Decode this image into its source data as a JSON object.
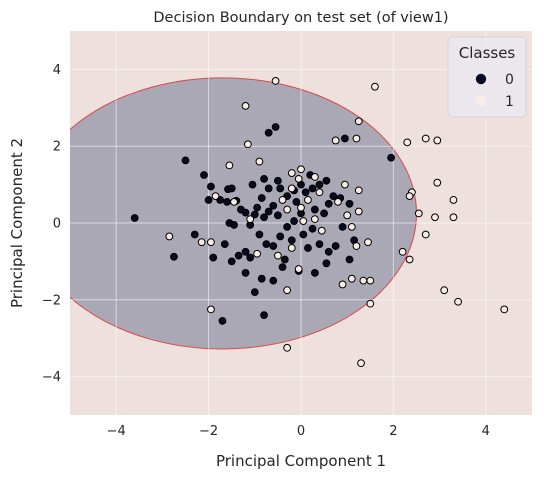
{
  "chart_data": {
    "type": "scatter",
    "title": "Decision Boundary on test set (of view1)",
    "xlabel": "Principal Component 1",
    "ylabel": "Principal Component 2",
    "xlim": [
      -5,
      5
    ],
    "ylim": [
      -5,
      5
    ],
    "xticks": [
      -4,
      -2,
      0,
      2,
      4
    ],
    "yticks": [
      -4,
      -2,
      0,
      2,
      4
    ],
    "grid": true,
    "legend": {
      "title": "Classes",
      "placement": "top-right",
      "entries": [
        "0",
        "1"
      ]
    },
    "decision_region": {
      "shape": "ellipse",
      "inside_class": "0",
      "center": [
        -1.7,
        0.25
      ],
      "radii": [
        4.2,
        3.53
      ],
      "inside_color": "#aba8b6",
      "outside_color": "#ede0dd",
      "edge_color": "#d84a48"
    },
    "series": [
      {
        "name": "0",
        "color": "#0a0a1e",
        "points": [
          [
            -3.6,
            0.13
          ],
          [
            -2.5,
            1.63
          ],
          [
            -2.1,
            1.25
          ],
          [
            -1.95,
            0.95
          ],
          [
            -1.58,
            0.88
          ],
          [
            -1.5,
            0.9
          ],
          [
            -1.6,
            0.55
          ],
          [
            -1.4,
            0.58
          ],
          [
            -1.75,
            0.6
          ],
          [
            -2.0,
            0.6
          ],
          [
            -2.3,
            -0.3
          ],
          [
            -2.75,
            -0.88
          ],
          [
            -1.9,
            -0.9
          ],
          [
            -1.65,
            -0.55
          ],
          [
            -1.45,
            -0.05
          ],
          [
            -1.55,
            0.0
          ],
          [
            -1.3,
            0.35
          ],
          [
            -1.2,
            0.27
          ],
          [
            -1.1,
            -0.05
          ],
          [
            -1.0,
            0.22
          ],
          [
            -0.95,
            0.4
          ],
          [
            -0.85,
            0.65
          ],
          [
            -0.7,
            0.9
          ],
          [
            -1.05,
            1.0
          ],
          [
            -0.8,
            1.15
          ],
          [
            -0.5,
            1.1
          ],
          [
            -0.45,
            0.9
          ],
          [
            -0.3,
            0.7
          ],
          [
            -0.15,
            0.85
          ],
          [
            0.0,
            1.0
          ],
          [
            0.2,
            1.25
          ],
          [
            0.25,
            0.9
          ],
          [
            0.4,
            1.0
          ],
          [
            0.55,
            1.1
          ],
          [
            0.7,
            0.7
          ],
          [
            0.85,
            0.65
          ],
          [
            1.05,
            0.5
          ],
          [
            0.6,
            0.5
          ],
          [
            0.5,
            0.25
          ],
          [
            0.3,
            0.35
          ],
          [
            0.0,
            0.25
          ],
          [
            -0.15,
            0.05
          ],
          [
            -0.3,
            -0.1
          ],
          [
            -0.5,
            0.2
          ],
          [
            -0.6,
            0.45
          ],
          [
            -0.7,
            0.3
          ],
          [
            -0.8,
            0.15
          ],
          [
            -0.9,
            -0.3
          ],
          [
            -0.75,
            -0.55
          ],
          [
            -0.6,
            -0.6
          ],
          [
            -0.45,
            -0.35
          ],
          [
            -0.2,
            -0.45
          ],
          [
            0.05,
            -0.3
          ],
          [
            0.25,
            -0.15
          ],
          [
            0.4,
            -0.55
          ],
          [
            0.6,
            -0.75
          ],
          [
            0.75,
            -0.6
          ],
          [
            0.9,
            -0.1
          ],
          [
            1.15,
            -0.45
          ],
          [
            1.05,
            -0.95
          ],
          [
            0.55,
            -1.05
          ],
          [
            0.3,
            -1.3
          ],
          [
            -0.05,
            -1.25
          ],
          [
            -0.4,
            -1.15
          ],
          [
            -0.6,
            -1.5
          ],
          [
            -0.85,
            -1.45
          ],
          [
            -1.1,
            -0.9
          ],
          [
            -1.2,
            -0.75
          ],
          [
            -1.35,
            -0.85
          ],
          [
            -1.5,
            -1.0
          ],
          [
            -1.0,
            -1.8
          ],
          [
            -1.2,
            -1.3
          ],
          [
            -0.8,
            -2.4
          ],
          [
            -1.7,
            -2.55
          ],
          [
            -0.7,
            2.35
          ],
          [
            -0.55,
            2.5
          ],
          [
            0.95,
            2.2
          ],
          [
            1.95,
            1.7
          ],
          [
            -0.35,
            -0.95
          ],
          [
            0.15,
            -0.65
          ],
          [
            -0.1,
            0.55
          ],
          [
            0.1,
            0.8
          ]
        ]
      },
      {
        "name": "1",
        "color": "#f8ece6",
        "points": [
          [
            -1.2,
            3.05
          ],
          [
            -0.55,
            3.7
          ],
          [
            1.6,
            3.55
          ],
          [
            1.25,
            2.65
          ],
          [
            1.2,
            2.2
          ],
          [
            0.75,
            2.15
          ],
          [
            -1.15,
            2.05
          ],
          [
            -0.9,
            1.6
          ],
          [
            -1.55,
            1.5
          ],
          [
            -0.2,
            1.3
          ],
          [
            0.0,
            1.4
          ],
          [
            0.3,
            1.2
          ],
          [
            -0.05,
            1.15
          ],
          [
            0.4,
            0.8
          ],
          [
            0.95,
            1.0
          ],
          [
            1.25,
            0.85
          ],
          [
            0.8,
            0.55
          ],
          [
            1.0,
            0.2
          ],
          [
            1.25,
            0.3
          ],
          [
            1.1,
            -0.1
          ],
          [
            1.2,
            -0.6
          ],
          [
            1.45,
            -0.5
          ],
          [
            0.3,
            0.1
          ],
          [
            0.05,
            0.05
          ],
          [
            -0.3,
            0.35
          ],
          [
            0.0,
            0.4
          ],
          [
            0.15,
            0.6
          ],
          [
            -0.2,
            -0.65
          ],
          [
            -0.05,
            -1.2
          ],
          [
            -0.5,
            -0.85
          ],
          [
            -0.95,
            -0.8
          ],
          [
            -1.1,
            0.1
          ],
          [
            -1.85,
            0.7
          ],
          [
            -1.45,
            0.55
          ],
          [
            -2.15,
            -0.5
          ],
          [
            -1.95,
            -0.5
          ],
          [
            -2.85,
            -0.35
          ],
          [
            -0.3,
            -1.75
          ],
          [
            -1.95,
            -2.25
          ],
          [
            -0.3,
            -3.25
          ],
          [
            1.35,
            -1.5
          ],
          [
            1.5,
            -1.5
          ],
          [
            1.5,
            -2.1
          ],
          [
            0.9,
            -1.6
          ],
          [
            1.1,
            -1.45
          ],
          [
            2.3,
            2.1
          ],
          [
            2.7,
            2.2
          ],
          [
            2.95,
            2.15
          ],
          [
            3.3,
            0.6
          ],
          [
            3.3,
            0.15
          ],
          [
            2.95,
            1.05
          ],
          [
            2.4,
            0.8
          ],
          [
            2.35,
            0.7
          ],
          [
            2.55,
            0.25
          ],
          [
            2.9,
            0.15
          ],
          [
            2.7,
            -0.3
          ],
          [
            2.35,
            -0.95
          ],
          [
            2.2,
            -0.75
          ],
          [
            3.1,
            -1.75
          ],
          [
            3.4,
            -2.05
          ],
          [
            4.4,
            -2.25
          ],
          [
            1.3,
            -3.65
          ],
          [
            -0.2,
            0.9
          ],
          [
            0.45,
            -0.2
          ],
          [
            -0.4,
            0.6
          ]
        ]
      }
    ]
  }
}
